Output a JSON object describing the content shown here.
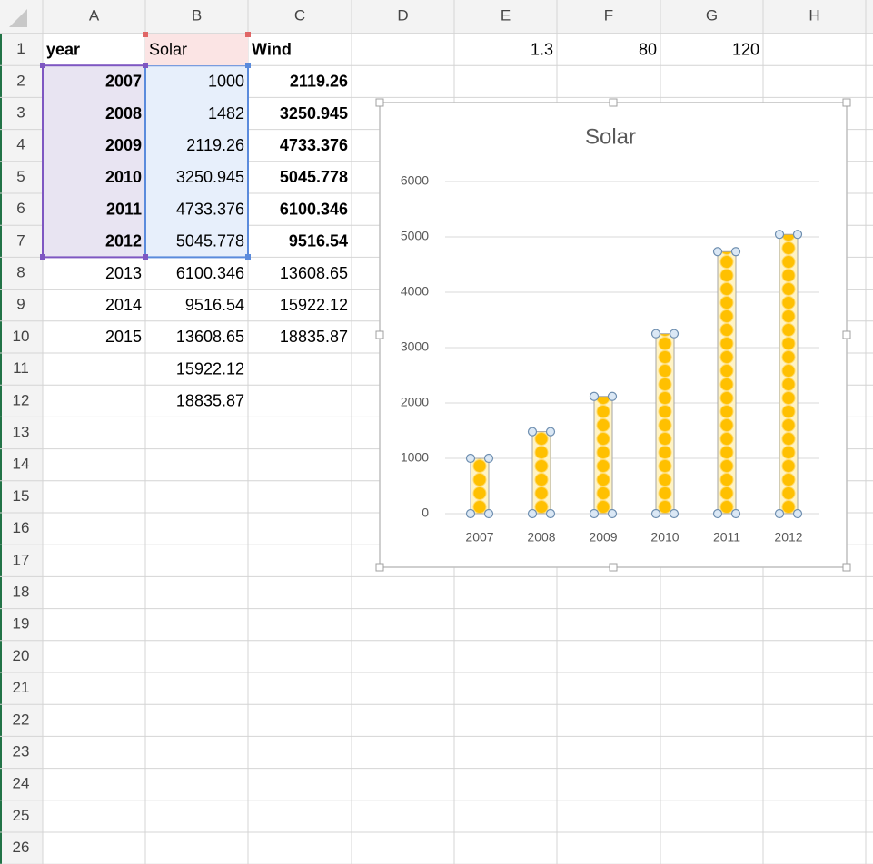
{
  "sheet": {
    "columns": [
      "A",
      "B",
      "C",
      "D",
      "E",
      "F",
      "G",
      "H"
    ],
    "row_numbers": [
      1,
      2,
      3,
      4,
      5,
      6,
      7,
      8,
      9,
      10,
      11,
      12,
      13,
      14,
      15,
      16,
      17,
      18,
      19,
      20,
      21,
      22,
      23,
      24,
      25,
      26
    ],
    "rows": [
      [
        "year",
        "Solar",
        "Wind",
        null,
        "1.3",
        "80",
        "120",
        null
      ],
      [
        "2007",
        "1000",
        "2119.26",
        null,
        null,
        null,
        null,
        null
      ],
      [
        "2008",
        "1482",
        "3250.945",
        null,
        null,
        null,
        null,
        null
      ],
      [
        "2009",
        "2119.26",
        "4733.376",
        null,
        null,
        null,
        null,
        null
      ],
      [
        "2010",
        "3250.945",
        "5045.778",
        null,
        null,
        null,
        null,
        null
      ],
      [
        "2011",
        "4733.376",
        "6100.346",
        null,
        null,
        null,
        null,
        null
      ],
      [
        "2012",
        "5045.778",
        "9516.54",
        null,
        null,
        null,
        null,
        null
      ],
      [
        "2013",
        "6100.346",
        "13608.65",
        null,
        null,
        null,
        null,
        null
      ],
      [
        "2014",
        "9516.54",
        "15922.12",
        null,
        null,
        null,
        null,
        null
      ],
      [
        "2015",
        "13608.65",
        "18835.87",
        null,
        null,
        null,
        null,
        null
      ],
      [
        null,
        "15922.12",
        null,
        null,
        null,
        null,
        null,
        null
      ],
      [
        null,
        "18835.87",
        null,
        null,
        null,
        null,
        null,
        null
      ]
    ]
  },
  "chart_data": {
    "type": "bar",
    "title": "Solar",
    "categories": [
      "2007",
      "2008",
      "2009",
      "2010",
      "2011",
      "2012"
    ],
    "values": [
      1000,
      1482,
      2119.26,
      3250.945,
      4733.376,
      5045.778
    ],
    "color": "#ffc000",
    "ylim": [
      0,
      6000
    ],
    "yticks": [
      0,
      1000,
      2000,
      3000,
      4000,
      5000,
      6000
    ],
    "grid": true
  }
}
